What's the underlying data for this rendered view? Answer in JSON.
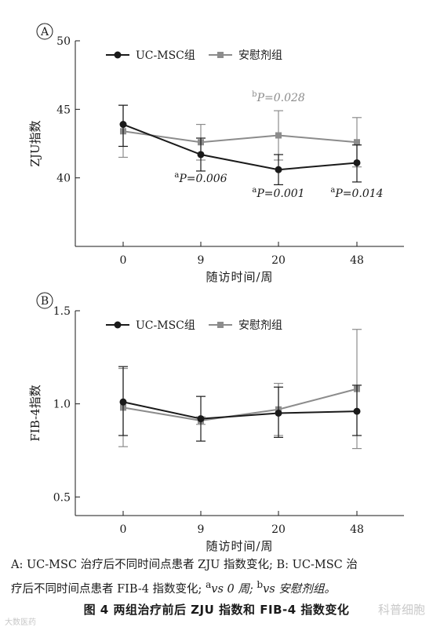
{
  "chart_data": [
    {
      "type": "line",
      "panel_label": "A",
      "xlabel": "随访时间/周",
      "ylabel": "ZJU指数",
      "categories": [
        "0",
        "9",
        "20",
        "48"
      ],
      "ylim": [
        35,
        50
      ],
      "yticks": [
        "40",
        "45",
        "50"
      ],
      "legend_position": "top-left",
      "series": [
        {
          "name": "UC-MSC组",
          "color": "#1a1a1a",
          "marker": "circle",
          "values": [
            43.9,
            41.7,
            40.6,
            41.1
          ],
          "err_low": [
            42.3,
            40.5,
            39.5,
            39.7
          ],
          "err_high": [
            45.3,
            42.9,
            41.7,
            42.4
          ]
        },
        {
          "name": "安慰剂组",
          "color": "#8c8c8c",
          "marker": "square",
          "values": [
            43.4,
            42.6,
            43.1,
            42.6
          ],
          "err_low": [
            41.5,
            41.3,
            41.3,
            40.8
          ],
          "err_high": [
            45.3,
            43.9,
            44.9,
            44.4
          ]
        }
      ],
      "annotations": [
        {
          "sup": "a",
          "text": "P=0.006",
          "color": "#1a1a1a",
          "cat": 1,
          "y": 39.7
        },
        {
          "sup": "a",
          "text": "P=0.001",
          "color": "#1a1a1a",
          "cat": 2,
          "y": 38.6
        },
        {
          "sup": "a",
          "text": "P=0.014",
          "color": "#1a1a1a",
          "cat": 3,
          "y": 38.6
        },
        {
          "sup": "b",
          "text": "P=0.028",
          "color": "#8c8c8c",
          "cat": 2,
          "y": 45.6
        }
      ]
    },
    {
      "type": "line",
      "panel_label": "B",
      "xlabel": "随访时间/周",
      "ylabel": "FIB-4指数",
      "categories": [
        "0",
        "9",
        "20",
        "48"
      ],
      "ylim": [
        0.4,
        1.5
      ],
      "yticks": [
        "0.5",
        "1.0",
        "1.5"
      ],
      "legend_position": "top-left",
      "series": [
        {
          "name": "UC-MSC组",
          "color": "#1a1a1a",
          "marker": "circle",
          "values": [
            1.01,
            0.92,
            0.95,
            0.96
          ],
          "err_low": [
            0.83,
            0.8,
            0.82,
            0.83
          ],
          "err_high": [
            1.2,
            1.04,
            1.09,
            1.1
          ]
        },
        {
          "name": "安慰剂组",
          "color": "#8c8c8c",
          "marker": "square",
          "values": [
            0.98,
            0.91,
            0.97,
            1.08
          ],
          "err_low": [
            0.77,
            0.89,
            0.83,
            0.76
          ],
          "err_high": [
            1.19,
            0.93,
            1.11,
            1.4
          ]
        }
      ],
      "annotations": []
    }
  ],
  "caption": {
    "line1": "A: UC-MSC 治疗后不同时间点患者 ZJU 指数变化; B: UC-MSC 治",
    "line2": "疗后不同时间点患者 FIB-4 指数变化; ",
    "sup_a": "a",
    "vs0": "vs 0 周; ",
    "sup_b": "b",
    "vsplacebo": "vs 安慰剂组。"
  },
  "figure_title": "图 4    两组治疗前后 ZJU 指数和 FIB-4 指数变化",
  "watermark_left": "大数医药",
  "watermark_right": "科普细胞"
}
